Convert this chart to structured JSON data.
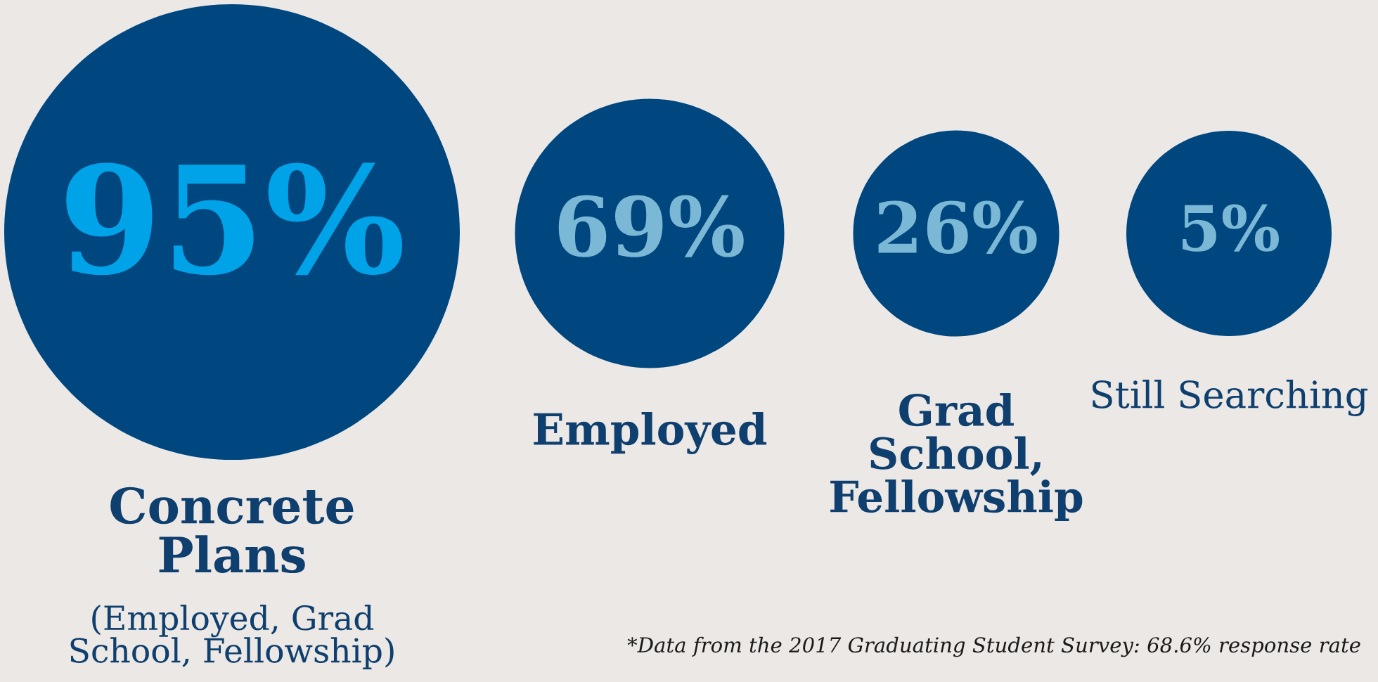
{
  "chart_data": {
    "type": "other",
    "categories": [
      "Concrete\nPlans",
      "Employed",
      "Grad\nSchool,\nFellowship",
      "Still Searching"
    ],
    "values": [
      95,
      69,
      26,
      5
    ],
    "value_labels": [
      "95%",
      "69%",
      "26%",
      "5%"
    ],
    "colors": [
      "#00467f",
      "#00467f",
      "#00467f",
      "#00467f"
    ],
    "data_labels": true,
    "annotations": [
      "(Employed, Grad\nSchool, Fellowship)",
      "*Data from the 2017 Graduating Student Survey: 68.6% response rate"
    ]
  }
}
